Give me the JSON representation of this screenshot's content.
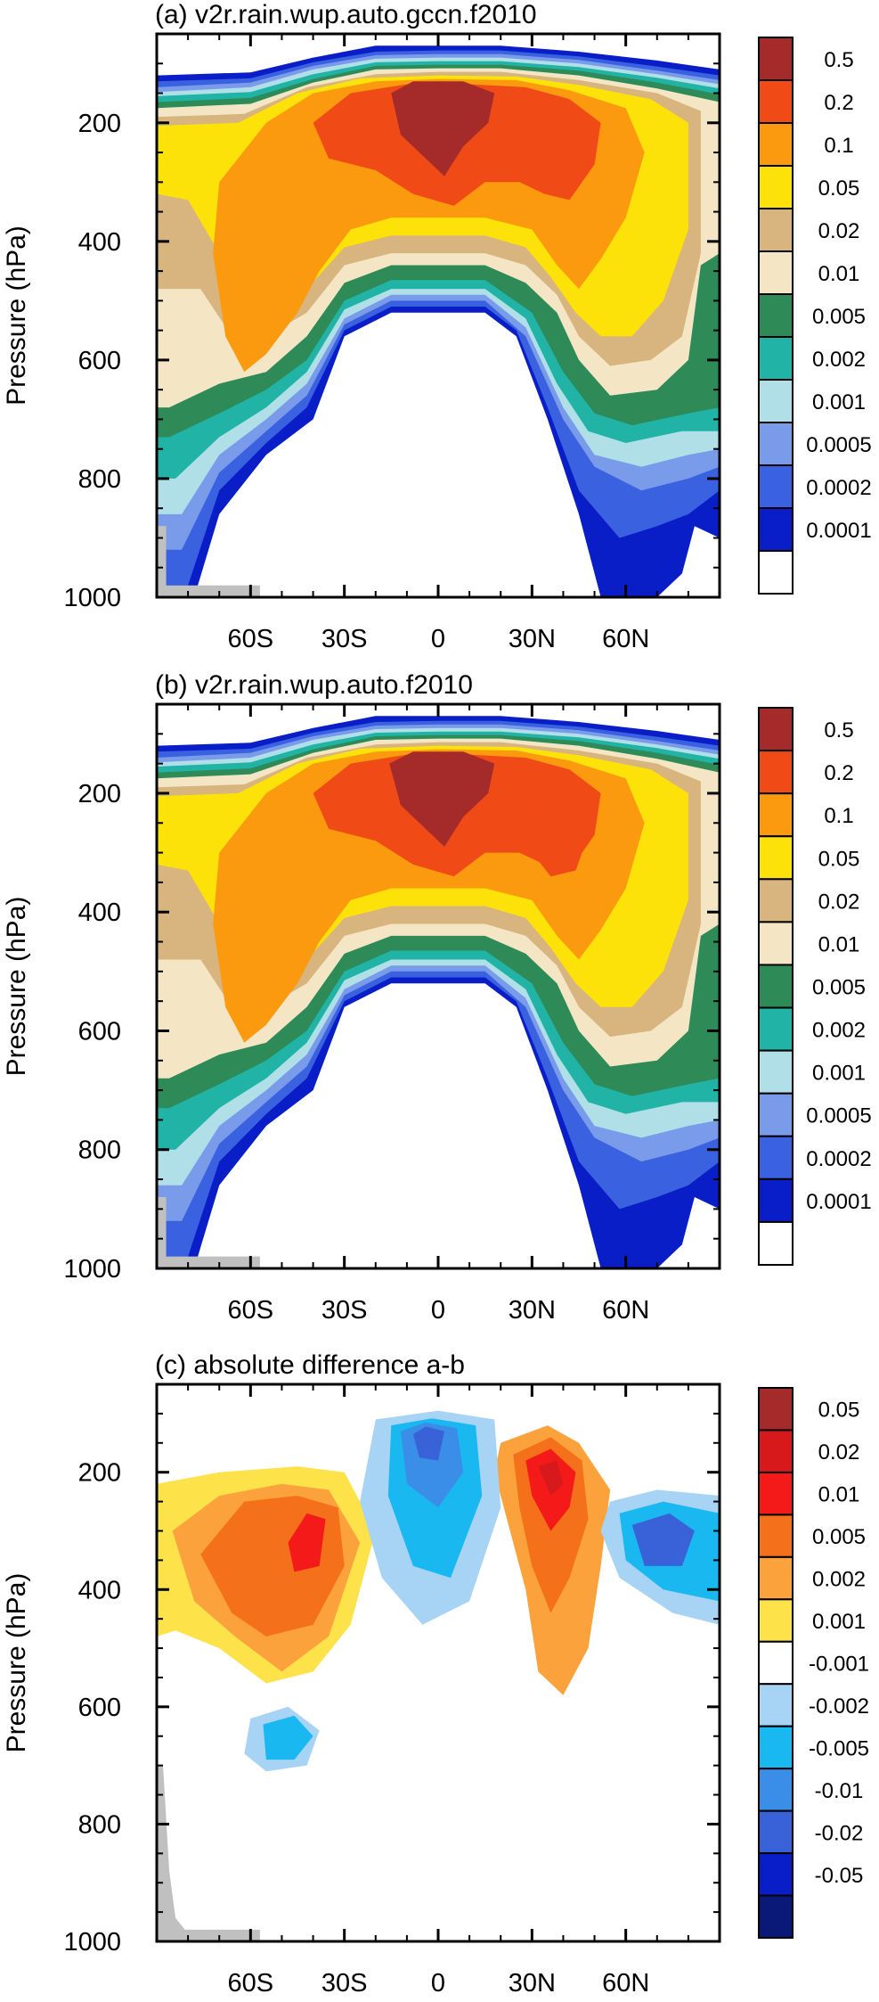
{
  "chart_data": [
    {
      "type": "heatmap",
      "title": "(a) v2r.rain.wup.auto.gccn.f2010",
      "ylabel": "Pressure (hPa)",
      "xlabel": "",
      "x_ticks": [
        "60S",
        "30S",
        "0",
        "30N",
        "60N"
      ],
      "x_tick_values": [
        -60,
        -30,
        0,
        30,
        60
      ],
      "xlim": [
        -90,
        90
      ],
      "y_ticks": [
        "200",
        "400",
        "600",
        "800",
        "1000"
      ],
      "y_tick_values": [
        200,
        400,
        600,
        800,
        1000
      ],
      "ylim": [
        1000,
        50
      ],
      "colorbar": {
        "labels": [
          "0.5",
          "0.2",
          "0.1",
          "0.05",
          "0.02",
          "0.01",
          "0.005",
          "0.002",
          "0.001",
          "0.0005",
          "0.0002",
          "0.0001"
        ],
        "colors": [
          "#a52a2a",
          "#f04a17",
          "#fb9a0e",
          "#fde20a",
          "#d8b47e",
          "#f4e6c4",
          "#2e8b57",
          "#21b3a6",
          "#b1dfe8",
          "#7a9bea",
          "#3a62e0",
          "#0a1ec8",
          "#ffffff"
        ]
      },
      "fields": [
        {
          "level": "0.5",
          "x": [
            -15,
            0,
            15
          ],
          "y": [
            300,
            140,
            140
          ]
        },
        {
          "level": "0.1",
          "x": [
            -40,
            0,
            50
          ],
          "y": [
            620,
            130,
            400
          ]
        }
      ],
      "missing_color": "#c0c0c0"
    },
    {
      "type": "heatmap",
      "title": "(b) v2r.rain.wup.auto.f2010",
      "ylabel": "Pressure (hPa)",
      "xlabel": "",
      "x_ticks": [
        "60S",
        "30S",
        "0",
        "30N",
        "60N"
      ],
      "x_tick_values": [
        -60,
        -30,
        0,
        30,
        60
      ],
      "xlim": [
        -90,
        90
      ],
      "y_ticks": [
        "200",
        "400",
        "600",
        "800",
        "1000"
      ],
      "y_tick_values": [
        200,
        400,
        600,
        800,
        1000
      ],
      "ylim": [
        1000,
        50
      ],
      "colorbar": {
        "labels": [
          "0.5",
          "0.2",
          "0.1",
          "0.05",
          "0.02",
          "0.01",
          "0.005",
          "0.002",
          "0.001",
          "0.0005",
          "0.0002",
          "0.0001"
        ],
        "colors": [
          "#a52a2a",
          "#f04a17",
          "#fb9a0e",
          "#fde20a",
          "#d8b47e",
          "#f4e6c4",
          "#2e8b57",
          "#21b3a6",
          "#b1dfe8",
          "#7a9bea",
          "#3a62e0",
          "#0a1ec8",
          "#ffffff"
        ]
      },
      "missing_color": "#c0c0c0"
    },
    {
      "type": "heatmap",
      "title": "(c) absolute difference a-b",
      "ylabel": "Pressure (hPa)",
      "xlabel": "",
      "x_ticks": [
        "60S",
        "30S",
        "0",
        "30N",
        "60N"
      ],
      "x_tick_values": [
        -60,
        -30,
        0,
        30,
        60
      ],
      "xlim": [
        -90,
        90
      ],
      "y_ticks": [
        "200",
        "400",
        "600",
        "800",
        "1000"
      ],
      "y_tick_values": [
        200,
        400,
        600,
        800,
        1000
      ],
      "ylim": [
        1000,
        50
      ],
      "colorbar": {
        "labels": [
          "0.05",
          "0.02",
          "0.01",
          "0.005",
          "0.002",
          "0.001",
          "-0.001",
          "-0.002",
          "-0.005",
          "-0.01",
          "-0.02",
          "-0.05"
        ],
        "colors": [
          "#a52a2a",
          "#d7191c",
          "#f41a1a",
          "#f4701b",
          "#fca23c",
          "#fde24a",
          "#ffffff",
          "#a7d3f5",
          "#1ab8f0",
          "#3a8ee8",
          "#3a62d8",
          "#0a1ec8",
          "#0a1878"
        ]
      },
      "missing_color": "#c0c0c0"
    }
  ]
}
